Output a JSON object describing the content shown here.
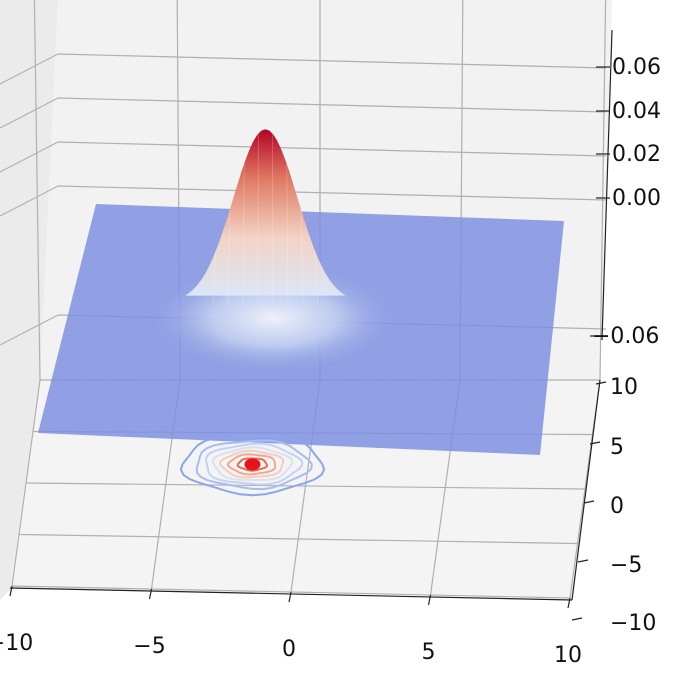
{
  "chart_data": {
    "type": "surface3d",
    "title": "",
    "xlabel": "",
    "ylabel": "",
    "zlabel": "",
    "x_ticks": [
      -10,
      -5,
      0,
      5,
      10
    ],
    "y_ticks": [
      -10,
      -5,
      0,
      5,
      10
    ],
    "z_ticks_upper": [
      0.0,
      0.02,
      0.04,
      0.06
    ],
    "z_tick_lower": -0.06,
    "x_tick_labels": [
      "−10",
      "−5",
      "0",
      "5",
      "10"
    ],
    "y_tick_labels": [
      "−10",
      "−5",
      "0",
      "5",
      "10"
    ],
    "z_tick_labels_upper": [
      "0.00",
      "0.02",
      "0.04",
      "0.06"
    ],
    "z_tick_label_lower": "−0.06",
    "xlim": [
      -10,
      10
    ],
    "ylim": [
      -10,
      10
    ],
    "zlim": [
      -0.07,
      0.07
    ],
    "grid": true,
    "colormap": "coolwarm",
    "colors": {
      "pane": "#f2f2f2",
      "grid": "#b0b0b0",
      "surface_low": "#7b8de0",
      "surface_high": "#b40426",
      "contour_center": "#e8141b"
    },
    "surface": {
      "function": "bivariate gaussian",
      "peak_x": -2,
      "peak_y": 2,
      "peak_z": 0.067,
      "sigma": 1.6
    },
    "contour": {
      "offset_z": -0.07,
      "levels": [
        0.005,
        0.012,
        0.02,
        0.03,
        0.04,
        0.05,
        0.06
      ]
    }
  }
}
